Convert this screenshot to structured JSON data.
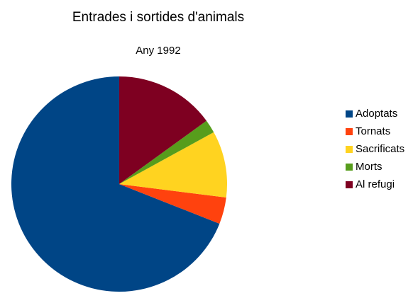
{
  "chart_data": {
    "type": "pie",
    "title": "Entrades i sortides d'animals",
    "subtitle": "Any 1992",
    "categories": [
      "Adoptats",
      "Tornats",
      "Sacrificats",
      "Morts",
      "Al refugi"
    ],
    "values": [
      69,
      4,
      10,
      2,
      15
    ],
    "colors": [
      "#004586",
      "#ff420e",
      "#ffd320",
      "#579d1c",
      "#7e0021"
    ],
    "legend": "right"
  }
}
